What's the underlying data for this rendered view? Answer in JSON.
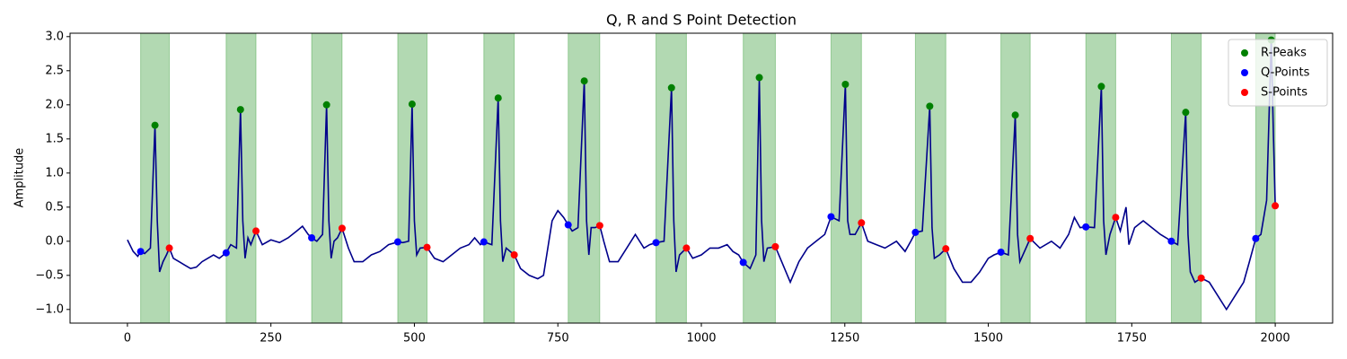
{
  "chart_data": {
    "type": "line",
    "title": "Q, R and S Point Detection",
    "ylabel": "Amplitude",
    "xlim": [
      -100,
      2100
    ],
    "ylim": [
      -1.2,
      3.05
    ],
    "xticks": [
      0,
      250,
      500,
      750,
      1000,
      1250,
      1500,
      1750,
      2000
    ],
    "yticks": [
      {
        "value": -1,
        "label": "−1.0"
      },
      {
        "value": -0.5,
        "label": "−0.5"
      },
      {
        "value": 0,
        "label": "0.0"
      },
      {
        "value": 0.5,
        "label": "0.5"
      },
      {
        "value": 1,
        "label": "1.0"
      },
      {
        "value": 1.5,
        "label": "1.5"
      },
      {
        "value": 2,
        "label": "2.0"
      },
      {
        "value": 2.5,
        "label": "2.5"
      },
      {
        "value": 3,
        "label": "3.0"
      }
    ],
    "legend": "upper right",
    "span_color": "green",
    "signal": {
      "color": "#00008b",
      "x": [
        0,
        10,
        18,
        23,
        30,
        40,
        48,
        52,
        56,
        62,
        68,
        73,
        80,
        90,
        100,
        110,
        120,
        130,
        140,
        150,
        160,
        172,
        180,
        190,
        197,
        201,
        205,
        210,
        215,
        224,
        235,
        250,
        265,
        280,
        295,
        305,
        315,
        321,
        330,
        340,
        347,
        351,
        355,
        360,
        366,
        374,
        385,
        395,
        410,
        425,
        440,
        455,
        471,
        480,
        490,
        496,
        500,
        504,
        510,
        522,
        535,
        550,
        565,
        580,
        595,
        605,
        615,
        621,
        635,
        646,
        650,
        654,
        660,
        674,
        685,
        700,
        715,
        725,
        740,
        750,
        760,
        768,
        775,
        785,
        796,
        800,
        804,
        808,
        815,
        823,
        830,
        840,
        855,
        870,
        885,
        900,
        910,
        921,
        935,
        948,
        952,
        956,
        962,
        974,
        985,
        1000,
        1015,
        1030,
        1045,
        1055,
        1065,
        1073,
        1085,
        1095,
        1101,
        1105,
        1109,
        1115,
        1129,
        1140,
        1155,
        1170,
        1185,
        1200,
        1215,
        1226,
        1240,
        1251,
        1255,
        1259,
        1268,
        1279,
        1290,
        1305,
        1320,
        1340,
        1355,
        1365,
        1373,
        1385,
        1398,
        1402,
        1406,
        1415,
        1426,
        1440,
        1455,
        1470,
        1485,
        1500,
        1510,
        1522,
        1535,
        1547,
        1551,
        1555,
        1563,
        1573,
        1590,
        1610,
        1625,
        1640,
        1650,
        1660,
        1670,
        1685,
        1697,
        1701,
        1705,
        1712,
        1722,
        1730,
        1740,
        1745,
        1755,
        1770,
        1785,
        1800,
        1810,
        1819,
        1830,
        1844,
        1848,
        1852,
        1860,
        1871,
        1885,
        1900,
        1915,
        1930,
        1945,
        1955,
        1966,
        1975,
        1985,
        1993,
        1997,
        2000
      ],
      "values": [
        0.02,
        -0.15,
        -0.22,
        -0.15,
        -0.18,
        -0.1,
        1.7,
        0.3,
        -0.45,
        -0.3,
        -0.2,
        -0.1,
        -0.25,
        -0.3,
        -0.35,
        -0.4,
        -0.38,
        -0.3,
        -0.25,
        -0.2,
        -0.25,
        -0.17,
        -0.05,
        -0.1,
        1.93,
        0.3,
        -0.25,
        0.05,
        -0.05,
        0.15,
        -0.05,
        0.02,
        -0.02,
        0.05,
        0.15,
        0.22,
        0.1,
        0.05,
        0.0,
        0.1,
        2.0,
        0.3,
        -0.25,
        0.0,
        0.05,
        0.19,
        -0.1,
        -0.3,
        -0.3,
        -0.2,
        -0.15,
        -0.05,
        -0.01,
        -0.02,
        0.0,
        2.01,
        0.3,
        -0.2,
        -0.1,
        -0.09,
        -0.25,
        -0.3,
        -0.2,
        -0.1,
        -0.05,
        0.05,
        -0.05,
        -0.01,
        -0.05,
        2.1,
        0.3,
        -0.3,
        -0.1,
        -0.2,
        -0.4,
        -0.5,
        -0.55,
        -0.5,
        0.3,
        0.45,
        0.35,
        0.24,
        0.15,
        0.2,
        2.35,
        0.3,
        -0.2,
        0.2,
        0.2,
        0.23,
        0.0,
        -0.3,
        -0.3,
        -0.1,
        0.1,
        -0.1,
        -0.05,
        -0.02,
        0.0,
        2.25,
        0.3,
        -0.45,
        -0.2,
        -0.1,
        -0.25,
        -0.2,
        -0.1,
        -0.1,
        -0.05,
        -0.15,
        -0.2,
        -0.31,
        -0.4,
        -0.2,
        2.4,
        0.3,
        -0.3,
        -0.1,
        -0.08,
        -0.3,
        -0.6,
        -0.3,
        -0.1,
        0.0,
        0.1,
        0.36,
        0.3,
        2.3,
        0.3,
        0.1,
        0.1,
        0.27,
        0.0,
        -0.05,
        -0.1,
        0.0,
        -0.15,
        0.0,
        0.13,
        0.15,
        1.98,
        0.2,
        -0.25,
        -0.2,
        -0.11,
        -0.4,
        -0.6,
        -0.6,
        -0.45,
        -0.25,
        -0.2,
        -0.16,
        -0.2,
        1.85,
        0.1,
        -0.3,
        -0.15,
        0.04,
        -0.1,
        0.0,
        -0.1,
        0.1,
        0.35,
        0.2,
        0.21,
        0.2,
        2.27,
        0.3,
        -0.2,
        0.1,
        0.35,
        0.15,
        0.5,
        -0.05,
        0.2,
        0.3,
        0.2,
        0.1,
        0.05,
        0.0,
        -0.05,
        1.89,
        0.1,
        -0.45,
        -0.6,
        -0.54,
        -0.6,
        -0.8,
        -1.0,
        -0.8,
        -0.6,
        -0.3,
        0.04,
        0.1,
        0.6,
        2.95,
        1.5,
        0.52
      ]
    },
    "series": [
      {
        "name": "R-Peaks",
        "color": "green",
        "x": [
          48,
          197,
          347,
          496,
          646,
          796,
          948,
          1101,
          1251,
          1398,
          1547,
          1697,
          1844,
          1993
        ],
        "values": [
          1.7,
          1.93,
          2.0,
          2.01,
          2.1,
          2.35,
          2.25,
          2.4,
          2.3,
          1.98,
          1.85,
          2.27,
          1.89,
          2.95
        ]
      },
      {
        "name": "Q-Points",
        "color": "blue",
        "x": [
          23,
          172,
          321,
          471,
          621,
          768,
          921,
          1073,
          1226,
          1373,
          1522,
          1670,
          1819,
          1966
        ],
        "values": [
          -0.15,
          -0.17,
          0.05,
          -0.01,
          -0.01,
          0.24,
          -0.02,
          -0.31,
          0.36,
          0.13,
          -0.16,
          0.21,
          0.0,
          0.04
        ]
      },
      {
        "name": "S-Points",
        "color": "red",
        "x": [
          73,
          224,
          374,
          522,
          674,
          823,
          974,
          1129,
          1279,
          1426,
          1573,
          1722,
          1871,
          2000
        ],
        "values": [
          -0.1,
          0.15,
          0.19,
          -0.09,
          -0.2,
          0.23,
          -0.1,
          -0.08,
          0.27,
          -0.11,
          0.04,
          0.35,
          -0.54,
          0.52
        ]
      }
    ]
  }
}
